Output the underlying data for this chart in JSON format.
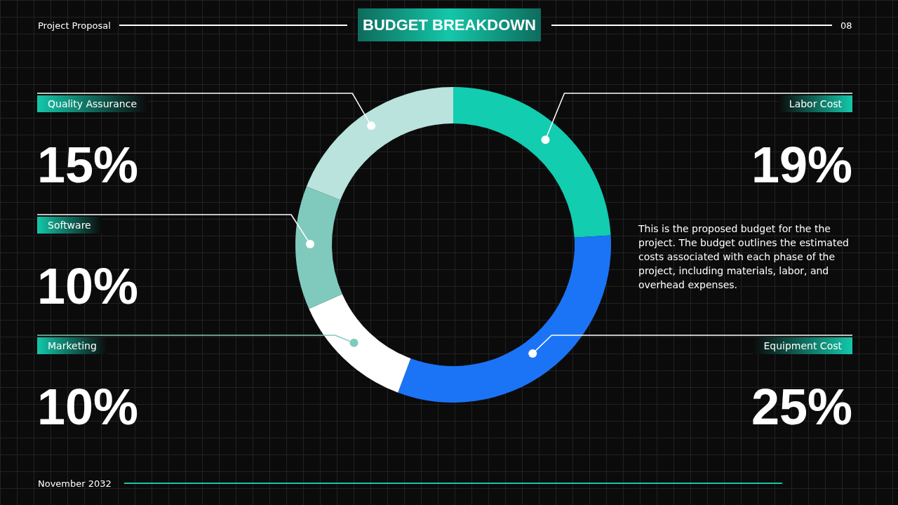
{
  "chart_data": {
    "type": "donut",
    "title": "BUDGET BREAKDOWN",
    "categories": [
      "Labor Cost",
      "Equipment Cost",
      "Marketing",
      "Software",
      "Quality Assurance"
    ],
    "values": [
      19,
      25,
      10,
      10,
      15
    ],
    "colors": [
      "#12cdb0",
      "#1b74f6",
      "#ffffff",
      "#80cabd",
      "#b9e3dc"
    ],
    "value_labels": [
      "19%",
      "25%",
      "10%",
      "10%",
      "15%"
    ],
    "annotations": [
      "Project Proposal",
      "08",
      "This is the proposed budget for the the project. The budget outlines the estimated costs associated with each phase of the project, including materials, labor, and overhead expenses.",
      "November 2032"
    ]
  }
}
